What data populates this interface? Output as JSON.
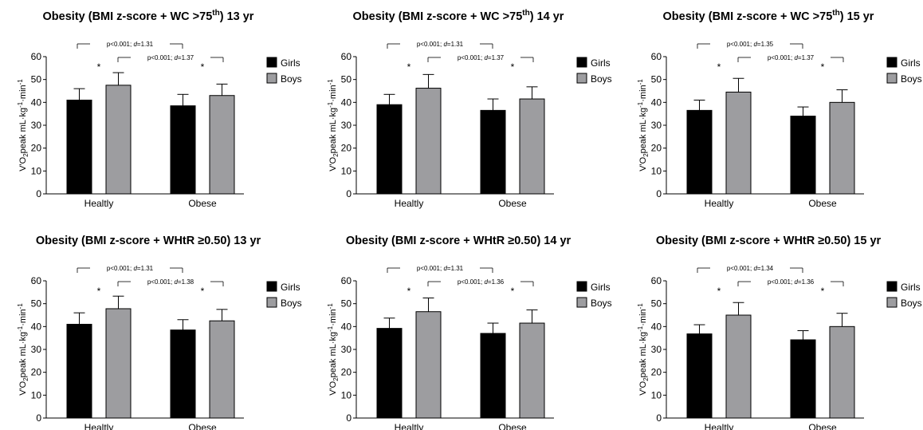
{
  "figure": {
    "colors": {
      "girls": "#000000",
      "boys": "#9d9da0",
      "axis": "#000000"
    }
  },
  "chart_data": [
    {
      "type": "bar",
      "title": {
        "main": "Obesity (BMI z-score + WC >75",
        "sup": "th",
        "tail": ") 13 yr"
      },
      "ylabel": {
        "main": "V'O",
        "sub": "2",
        "mid": "peak mL·kg",
        "sup1": "-1",
        "dot": "·min",
        "sup2": "-1"
      },
      "categories": [
        "Healtly",
        "Obese"
      ],
      "ylim": [
        0,
        60
      ],
      "yticks": [
        "0",
        "10",
        "20",
        "30",
        "40",
        "50",
        "60"
      ],
      "series": [
        {
          "name": "Girls",
          "values": [
            41,
            38.5
          ],
          "errors": [
            5,
            5
          ]
        },
        {
          "name": "Boys",
          "values": [
            47.5,
            43
          ],
          "errors": [
            5.5,
            5
          ]
        }
      ],
      "significance_markers": [
        "*",
        "*"
      ],
      "comparisons": [
        {
          "prefix": "p<0.001; ",
          "d_label": "d",
          "suffix": "=1.31"
        },
        {
          "prefix": "p<0.001; ",
          "d_label": "d",
          "suffix": "=1.37"
        }
      ]
    },
    {
      "type": "bar",
      "title": {
        "main": "Obesity (BMI z-score + WC >75",
        "sup": "th",
        "tail": ") 14 yr"
      },
      "ylabel": {
        "main": "V'O",
        "sub": "2",
        "mid": "peak mL·kg",
        "sup1": "-1",
        "dot": "·min",
        "sup2": "-1"
      },
      "categories": [
        "Healtly",
        "Obese"
      ],
      "ylim": [
        0,
        60
      ],
      "yticks": [
        "0",
        "10",
        "20",
        "30",
        "40",
        "50",
        "60"
      ],
      "series": [
        {
          "name": "Girls",
          "values": [
            39,
            36.5
          ],
          "errors": [
            4.5,
            5
          ]
        },
        {
          "name": "Boys",
          "values": [
            46.2,
            41.5
          ],
          "errors": [
            6,
            5.3
          ]
        }
      ],
      "significance_markers": [
        "*",
        "*"
      ],
      "comparisons": [
        {
          "prefix": "p<0.001; ",
          "d_label": "d",
          "suffix": "=1.31"
        },
        {
          "prefix": "p<0.001; ",
          "d_label": "d",
          "suffix": "=1.37"
        }
      ]
    },
    {
      "type": "bar",
      "title": {
        "main": "Obesity (BMI z-score + WC >75",
        "sup": "th",
        "tail": ") 15 yr"
      },
      "ylabel": {
        "main": "V'O",
        "sub": "2",
        "mid": "peak mL·kg",
        "sup1": "-1",
        "dot": "·min",
        "sup2": "-1"
      },
      "categories": [
        "Healtly",
        "Obese"
      ],
      "ylim": [
        0,
        60
      ],
      "yticks": [
        "0",
        "10",
        "20",
        "30",
        "40",
        "50",
        "60"
      ],
      "series": [
        {
          "name": "Girls",
          "values": [
            36.5,
            34
          ],
          "errors": [
            4.5,
            4
          ]
        },
        {
          "name": "Boys",
          "values": [
            44.5,
            40
          ],
          "errors": [
            6,
            5.5
          ]
        }
      ],
      "significance_markers": [
        "*",
        "*"
      ],
      "comparisons": [
        {
          "prefix": "p<0.001; ",
          "d_label": "d",
          "suffix": "=1.35"
        },
        {
          "prefix": "p<0.001; ",
          "d_label": "d",
          "suffix": "=1.37"
        }
      ]
    },
    {
      "type": "bar",
      "title": {
        "main": "Obesity (BMI z-score + WHtR ≥0.50) 13 yr",
        "sup": "",
        "tail": ""
      },
      "ylabel": {
        "main": "V'O",
        "sub": "2",
        "mid": "peak mL·kg",
        "sup1": "-1",
        "dot": "·min",
        "sup2": "-1"
      },
      "categories": [
        "Healtly",
        "Obese"
      ],
      "ylim": [
        0,
        60
      ],
      "yticks": [
        "0",
        "10",
        "20",
        "30",
        "40",
        "50",
        "60"
      ],
      "series": [
        {
          "name": "Girls",
          "values": [
            41,
            38.5
          ],
          "errors": [
            5,
            4.5
          ]
        },
        {
          "name": "Boys",
          "values": [
            47.8,
            42.5
          ],
          "errors": [
            5.5,
            5
          ]
        }
      ],
      "significance_markers": [
        "*",
        "*"
      ],
      "comparisons": [
        {
          "prefix": "p<0.001; ",
          "d_label": "d",
          "suffix": "=1.31"
        },
        {
          "prefix": "p<0.001; ",
          "d_label": "d",
          "suffix": "=1.38"
        }
      ]
    },
    {
      "type": "bar",
      "title": {
        "main": "Obesity (BMI z-score + WHtR ≥0.50) 14 yr",
        "sup": "",
        "tail": ""
      },
      "ylabel": {
        "main": "V'O",
        "sub": "2",
        "mid": "peak mL·kg",
        "sup1": "-1",
        "dot": "·min",
        "sup2": "-1"
      },
      "categories": [
        "Healtly",
        "Obese"
      ],
      "ylim": [
        0,
        60
      ],
      "yticks": [
        "0",
        "10",
        "20",
        "30",
        "40",
        "50",
        "60"
      ],
      "series": [
        {
          "name": "Girls",
          "values": [
            39.2,
            37
          ],
          "errors": [
            4.5,
            4.5
          ]
        },
        {
          "name": "Boys",
          "values": [
            46.5,
            41.5
          ],
          "errors": [
            6,
            5.8
          ]
        }
      ],
      "significance_markers": [
        "*",
        "*"
      ],
      "comparisons": [
        {
          "prefix": "p<0.001; ",
          "d_label": "d",
          "suffix": "=1.31"
        },
        {
          "prefix": "p<0.001; ",
          "d_label": "d",
          "suffix": "=1.36"
        }
      ]
    },
    {
      "type": "bar",
      "title": {
        "main": "Obesity (BMI z-score + WHtR ≥0.50) 15 yr",
        "sup": "",
        "tail": ""
      },
      "ylabel": {
        "main": "V'O",
        "sub": "2",
        "mid": "peak mL·kg",
        "sup1": "-1",
        "dot": "·min",
        "sup2": "-1"
      },
      "categories": [
        "Healtly",
        "Obese"
      ],
      "ylim": [
        0,
        60
      ],
      "yticks": [
        "0",
        "10",
        "20",
        "30",
        "40",
        "50",
        "60"
      ],
      "series": [
        {
          "name": "Girls",
          "values": [
            36.8,
            34.2
          ],
          "errors": [
            4,
            4
          ]
        },
        {
          "name": "Boys",
          "values": [
            45,
            40
          ],
          "errors": [
            5.5,
            5.8
          ]
        }
      ],
      "significance_markers": [
        "*",
        "*"
      ],
      "comparisons": [
        {
          "prefix": "p<0.001; ",
          "d_label": "d",
          "suffix": "=1.34"
        },
        {
          "prefix": "p<0.001; ",
          "d_label": "d",
          "suffix": "=1.36"
        }
      ]
    }
  ]
}
